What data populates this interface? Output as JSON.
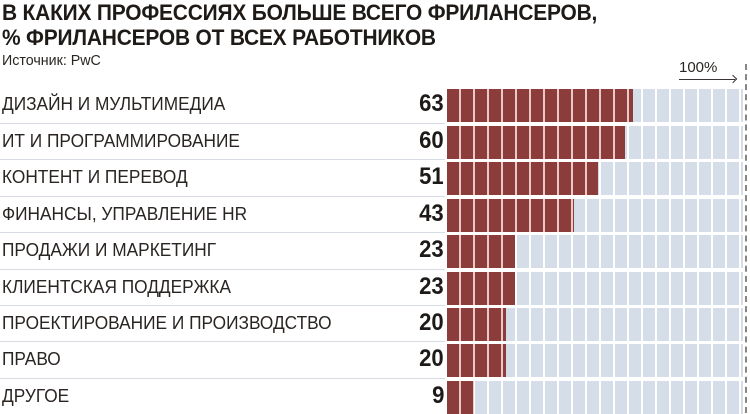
{
  "header": {
    "title_line1": "В КАКИХ ПРОФЕССИЯХ БОЛЬШЕ ВСЕГО ФРИЛАНСЕРОВ,",
    "title_line2": "% ФРИЛАНСЕРОВ ОТ ВСЕХ РАБОТНИКОВ",
    "source": "Источник: PwC",
    "scale_label": "100%"
  },
  "colors": {
    "bar_fill": "#8c3d3b",
    "bar_track": "#d5dde8",
    "text": "#231f1c"
  },
  "rows": [
    {
      "label": "ДИЗАЙН И МУЛЬТИМЕДИА",
      "value": "63"
    },
    {
      "label": "ИТ И ПРОГРАММИРОВАНИЕ",
      "value": "60"
    },
    {
      "label": "КОНТЕНТ И ПЕРЕВОД",
      "value": "51"
    },
    {
      "label": "ФИНАНСЫ, УПРАВЛЕНИЕ HR",
      "value": "43"
    },
    {
      "label": "ПРОДАЖИ И МАРКЕТИНГ",
      "value": "23"
    },
    {
      "label": "КЛИЕНТСКАЯ ПОДДЕРЖКА",
      "value": "23"
    },
    {
      "label": "ПРОЕКТИРОВАНИЕ И ПРОИЗВОДСТВО",
      "value": "20"
    },
    {
      "label": "ПРАВО",
      "value": "20"
    },
    {
      "label": "ДРУГОЕ",
      "value": "9"
    }
  ],
  "chart_data": {
    "type": "bar",
    "orientation": "horizontal",
    "title": "В каких профессиях больше всего фрилансеров, % фрилансеров от всех работников",
    "subtitle": "Источник: PwC",
    "categories": [
      "Дизайн и мультимедиа",
      "ИТ и программирование",
      "Контент и перевод",
      "Финансы, управление HR",
      "Продажи и маркетинг",
      "Клиентская поддержка",
      "Проектирование и производство",
      "Право",
      "Другое"
    ],
    "values": [
      63,
      60,
      51,
      43,
      23,
      23,
      20,
      20,
      9
    ],
    "xlabel": "",
    "ylabel": "",
    "xlim": [
      0,
      100
    ],
    "annotations": [
      "100%"
    ],
    "grid": false,
    "legend": null
  }
}
